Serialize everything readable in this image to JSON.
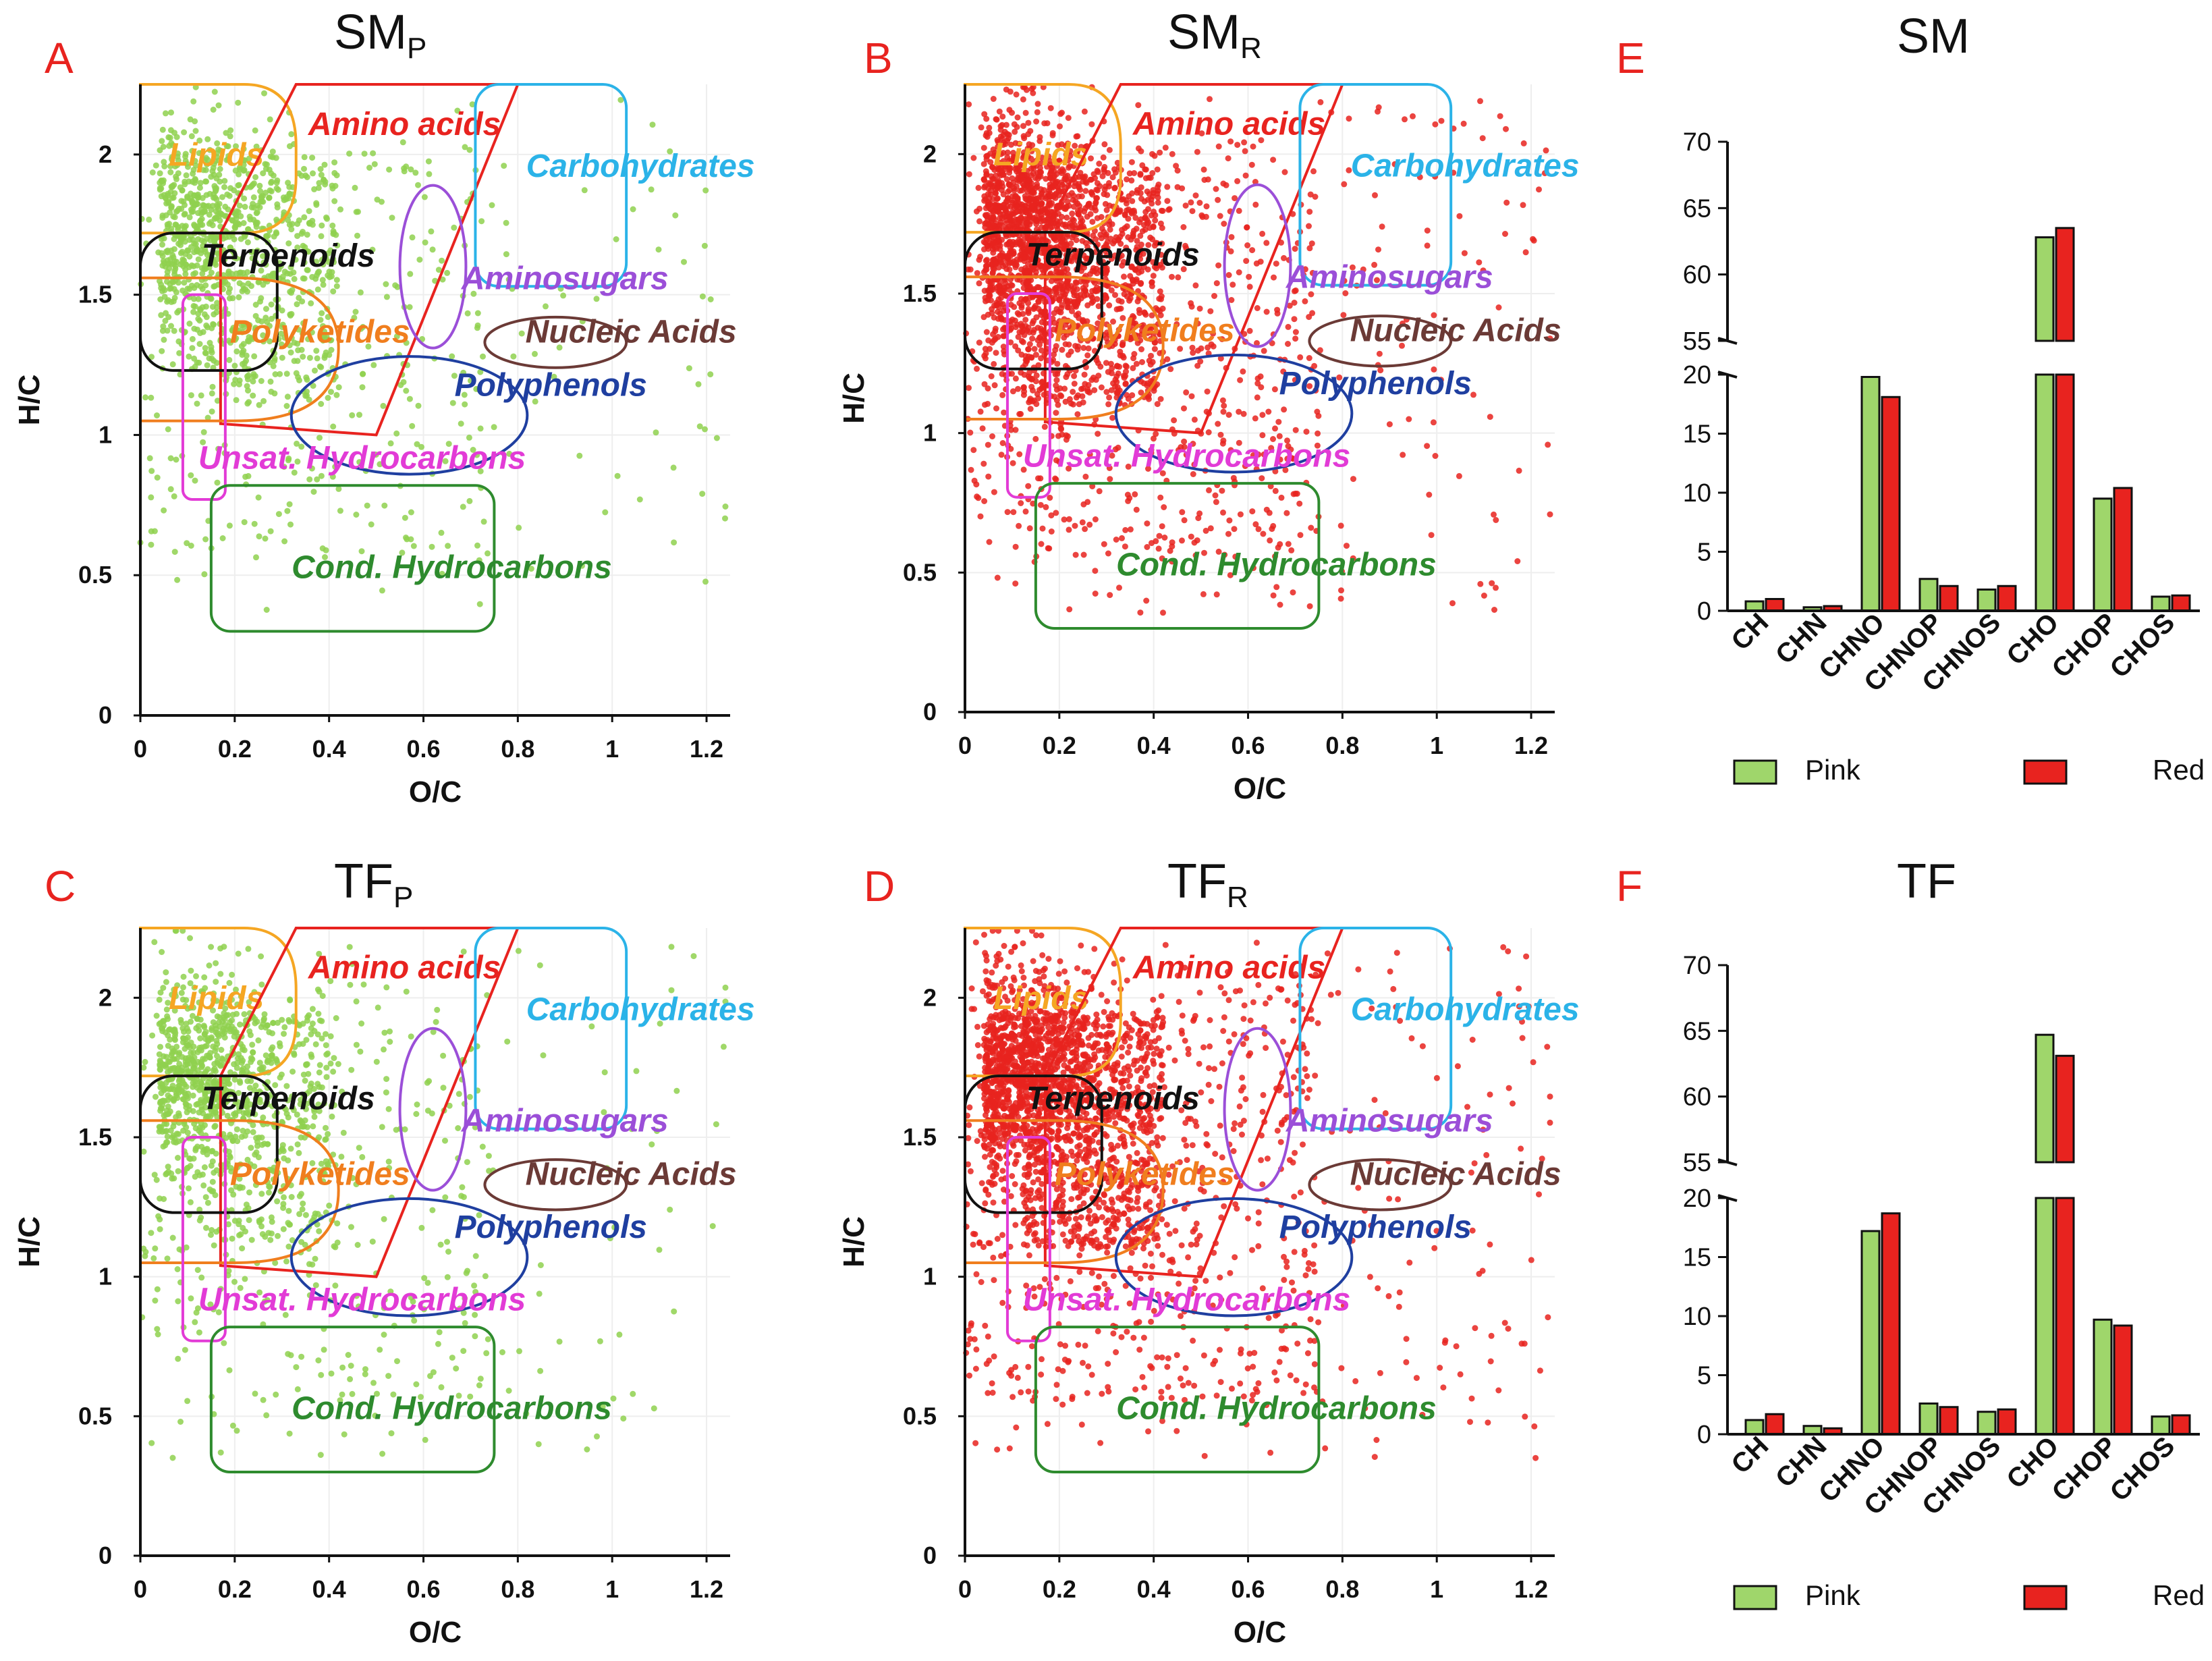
{
  "figure": {
    "background": "#ffffff",
    "panel_letter_color": "#e8231f"
  },
  "vk_axes": {
    "xlabel": "O/C",
    "ylabel": "H/C",
    "xlim": [
      0,
      1.25
    ],
    "ylim": [
      0,
      2.25
    ],
    "xticks": [
      "0",
      "0.2",
      "0.4",
      "0.6",
      "0.8",
      "1",
      "1.2"
    ],
    "yticks": [
      "0",
      "0.5",
      "1",
      "1.5",
      "2"
    ]
  },
  "regions": [
    {
      "id": "lipids",
      "label": "Lipids",
      "color": "#f5a623"
    },
    {
      "id": "amino",
      "label": "Amino acids",
      "color": "#e8231f"
    },
    {
      "id": "carb",
      "label": "Carbohydrates",
      "color": "#2bb3e8"
    },
    {
      "id": "terp",
      "label": "Terpenoids",
      "color": "#111111"
    },
    {
      "id": "amsug",
      "label": "Aminosugars",
      "color": "#9b4fd8"
    },
    {
      "id": "poly",
      "label": "Polyketides",
      "color": "#f07e1e"
    },
    {
      "id": "nuc",
      "label": "Nucleic Acids",
      "color": "#6b3a36"
    },
    {
      "id": "phen",
      "label": "Polyphenols",
      "color": "#1f3fa0"
    },
    {
      "id": "unsat",
      "label": "Unsat. Hydrocarbons",
      "color": "#e23bd6"
    },
    {
      "id": "cond",
      "label": "Cond. Hydrocarbons",
      "color": "#2e8b2e"
    }
  ],
  "chart_data": [
    {
      "panel": "A",
      "type": "scatter",
      "title": "SM",
      "title_sub": "P",
      "xlabel": "O/C",
      "ylabel": "H/C",
      "xlim": [
        0,
        1.25
      ],
      "ylim": [
        0,
        2.25
      ],
      "point_color": "#8fd14f",
      "point_count": 1300,
      "seed": 11
    },
    {
      "panel": "B",
      "type": "scatter",
      "title": "SM",
      "title_sub": "R",
      "xlabel": "O/C",
      "ylabel": "H/C",
      "xlim": [
        0,
        1.25
      ],
      "ylim": [
        0,
        2.25
      ],
      "point_color": "#e8231f",
      "point_count": 2600,
      "seed": 23
    },
    {
      "panel": "C",
      "type": "scatter",
      "title": "TF",
      "title_sub": "P",
      "xlabel": "O/C",
      "ylabel": "H/C",
      "xlim": [
        0,
        1.25
      ],
      "ylim": [
        0,
        2.25
      ],
      "point_color": "#8fd14f",
      "point_count": 1300,
      "seed": 37
    },
    {
      "panel": "D",
      "type": "scatter",
      "title": "TF",
      "title_sub": "R",
      "xlabel": "O/C",
      "ylabel": "H/C",
      "xlim": [
        0,
        1.25
      ],
      "ylim": [
        0,
        2.25
      ],
      "point_color": "#e8231f",
      "point_count": 2600,
      "seed": 41
    },
    {
      "panel": "E",
      "type": "bar",
      "title": "SM",
      "categories": [
        "CH",
        "CHN",
        "CHNO",
        "CHNOP",
        "CHNOS",
        "CHO",
        "CHOP",
        "CHOS"
      ],
      "series": [
        {
          "name": "Pink",
          "color": "#9fd66b",
          "values": [
            0.8,
            0.3,
            19.8,
            2.7,
            1.8,
            62.8,
            9.5,
            1.2
          ]
        },
        {
          "name": "Red",
          "color": "#e8231f",
          "values": [
            1.0,
            0.4,
            18.1,
            2.1,
            2.1,
            63.5,
            10.4,
            1.3
          ]
        }
      ],
      "ylim_lower": [
        0,
        20
      ],
      "yticks_lower": [
        "0",
        "5",
        "10",
        "15",
        "20"
      ],
      "ylim_upper": [
        55,
        70
      ],
      "yticks_upper": [
        "55",
        "60",
        "65",
        "70"
      ]
    },
    {
      "panel": "F",
      "type": "bar",
      "title": "TF",
      "categories": [
        "CH",
        "CHN",
        "CHNO",
        "CHNOP",
        "CHNOS",
        "CHO",
        "CHOP",
        "CHOS"
      ],
      "series": [
        {
          "name": "Pink",
          "color": "#9fd66b",
          "values": [
            1.2,
            0.7,
            17.2,
            2.6,
            1.9,
            64.7,
            9.7,
            1.5
          ]
        },
        {
          "name": "Red",
          "color": "#e8231f",
          "values": [
            1.7,
            0.5,
            18.7,
            2.3,
            2.1,
            63.1,
            9.2,
            1.6
          ]
        }
      ],
      "ylim_lower": [
        0,
        20
      ],
      "yticks_lower": [
        "0",
        "5",
        "10",
        "15",
        "20"
      ],
      "ylim_upper": [
        55,
        70
      ],
      "yticks_upper": [
        "55",
        "60",
        "65",
        "70"
      ]
    }
  ]
}
